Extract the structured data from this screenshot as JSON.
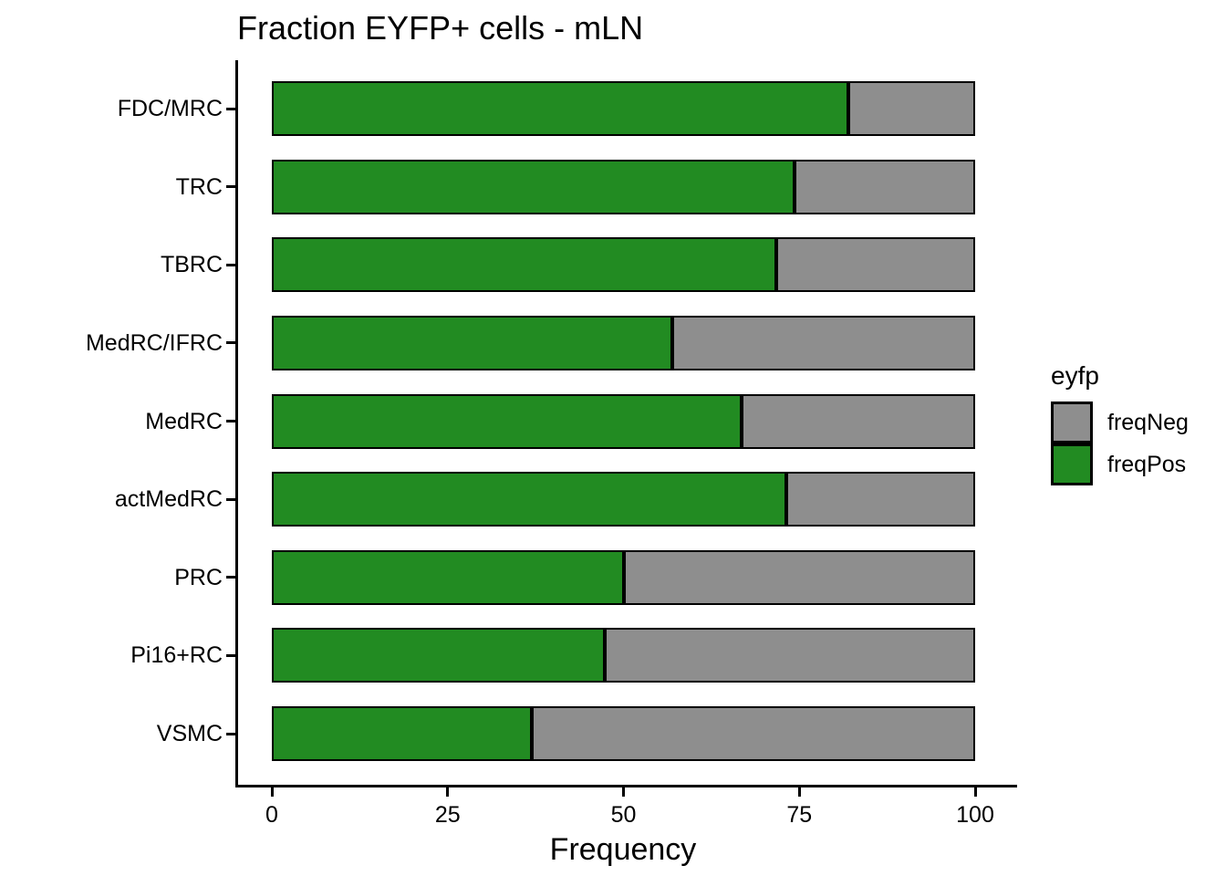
{
  "chart_data": {
    "type": "bar",
    "orientation": "horizontal",
    "stacked": true,
    "title": "Fraction EYFP+ cells - mLN",
    "xlabel": "Frequency",
    "ylabel": "",
    "xlim": [
      0,
      100
    ],
    "x_ticks": [
      0,
      25,
      50,
      75,
      100
    ],
    "grid": false,
    "categories": [
      "FDC/MRC",
      "TRC",
      "TBRC",
      "MedRC/IFRC",
      "MedRC",
      "actMedRC",
      "PRC",
      "Pi16+RC",
      "VSMC"
    ],
    "series": [
      {
        "name": "freqPos",
        "color": "#228B22",
        "values": [
          82,
          74.3,
          71.7,
          57,
          66.8,
          73.2,
          50,
          47.3,
          37
        ]
      },
      {
        "name": "freqNeg",
        "color": "#8E8E8E",
        "values": [
          18,
          25.7,
          28.3,
          43,
          33.2,
          26.8,
          50,
          52.7,
          63
        ]
      }
    ],
    "bar_border_color": "#000000",
    "legend": {
      "title": "eyfp",
      "position": "right",
      "entries": [
        {
          "label": "freqNeg",
          "color": "#8E8E8E"
        },
        {
          "label": "freqPos",
          "color": "#228B22"
        }
      ]
    }
  }
}
